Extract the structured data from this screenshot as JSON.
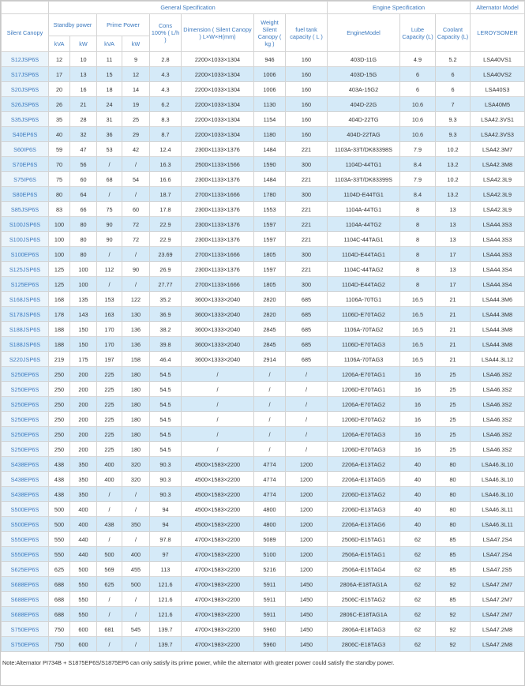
{
  "header": {
    "general": "General Specification",
    "engine": "Engine Specification",
    "alternator": "Alternator Model",
    "silent_canopy": "Silent Canopy",
    "standby": "Standby power",
    "prime": "Prime Power",
    "cons": "Cons 100% ( L/h )",
    "dimension": "Dimension ( Silent Canopy ) L×W×H(mm)",
    "weight": "Weight Silent Canopy ( kg )",
    "fuel": "fuel tank capacity ( L )",
    "engine_model": "EngineModel",
    "lube": "Lube Capacity (L)",
    "coolant": "Coolant Capacity (L)",
    "brand": "LEROYSOMER",
    "kva": "kVA",
    "kw": "kW"
  },
  "rows": [
    [
      "S12JSP6S",
      12,
      10,
      11,
      9,
      2.8,
      "2200×1033×1304",
      946,
      160,
      "403D-11G",
      4.9,
      5.2,
      "LSA40VS1"
    ],
    [
      "S17JSP6S",
      17,
      13,
      15,
      12,
      4.3,
      "2200×1033×1304",
      1006,
      160,
      "403D-15G",
      6,
      6,
      "LSA40VS2"
    ],
    [
      "S20JSP6S",
      20,
      16,
      18,
      14,
      4.3,
      "2200×1033×1304",
      1006,
      160,
      "403A-15G2",
      6,
      6,
      "LSA40S3"
    ],
    [
      "S26JSP6S",
      26,
      21,
      24,
      19,
      6.2,
      "2200×1033×1304",
      1130,
      160,
      "404D-22G",
      10.6,
      7,
      "LSA40M5"
    ],
    [
      "S35JSP6S",
      35,
      28,
      31,
      25,
      8.3,
      "2200×1033×1304",
      1154,
      160,
      "404D-22TG",
      10.6,
      9.3,
      "LSA42.3VS1"
    ],
    [
      "S40EP6S",
      40,
      32,
      36,
      29,
      8.7,
      "2200×1033×1304",
      1180,
      160,
      "404D-22TAG",
      10.6,
      9.3,
      "LSA42.3VS3"
    ],
    [
      "S60IP6S",
      59,
      47,
      53,
      42,
      12.4,
      "2300×1133×1376",
      1484,
      221,
      "1103A-33T/DK83398S",
      7.9,
      10.2,
      "LSA42.3M7"
    ],
    [
      "S70EP6S",
      70,
      56,
      "/",
      "/",
      16.3,
      "2500×1133×1566",
      1590,
      300,
      "1104D-44TG1",
      8.4,
      13.2,
      "LSA42.3M8"
    ],
    [
      "S75IP6S",
      75,
      60,
      68,
      54,
      16.6,
      "2300×1133×1376",
      1484,
      221,
      "1103A-33T/DK83399S",
      7.9,
      10.2,
      "LSA42.3L9"
    ],
    [
      "S80EP6S",
      80,
      64,
      "/",
      "/",
      18.7,
      "2700×1133×1666",
      1780,
      300,
      "1104D-E44TG1",
      8.4,
      13.2,
      "LSA42.3L9"
    ],
    [
      "S85JSP6S",
      83,
      66,
      75,
      60,
      17.8,
      "2300×1133×1376",
      1553,
      221,
      "1104A-44TG1",
      8,
      13,
      "LSA42.3L9"
    ],
    [
      "S100JSP6S",
      100,
      80,
      90,
      72,
      22.9,
      "2300×1133×1376",
      1597,
      221,
      "1104A-44TG2",
      8,
      13,
      "LSA44.3S3"
    ],
    [
      "S100JSP6S",
      100,
      80,
      90,
      72,
      22.9,
      "2300×1133×1376",
      1597,
      221,
      "1104C-44TAG1",
      8,
      13,
      "LSA44.3S3"
    ],
    [
      "S100EP6S",
      100,
      80,
      "/",
      "/",
      23.69,
      "2700×1133×1666",
      1805,
      300,
      "1104D-E44TAG1",
      8,
      17,
      "LSA44.3S3"
    ],
    [
      "S125JSP6S",
      125,
      100,
      112,
      90,
      26.9,
      "2300×1133×1376",
      1597,
      221,
      "1104C-44TAG2",
      8,
      13,
      "LSA44.3S4"
    ],
    [
      "S125EP6S",
      125,
      100,
      "/",
      "/",
      27.77,
      "2700×1133×1666",
      1805,
      300,
      "1104D-E44TAG2",
      8,
      17,
      "LSA44.3S4"
    ],
    [
      "S168JSP6S",
      168,
      135,
      153,
      122,
      35.2,
      "3600×1333×2040",
      2820,
      685,
      "1106A-70TG1",
      16.5,
      21,
      "LSA44.3M6"
    ],
    [
      "S178JSP6S",
      178,
      143,
      163,
      130,
      36.9,
      "3600×1333×2040",
      2820,
      685,
      "1106D-E70TAG2",
      16.5,
      21,
      "LSA44.3M8"
    ],
    [
      "S188JSP6S",
      188,
      150,
      170,
      136,
      38.2,
      "3600×1333×2040",
      2845,
      685,
      "1106A-70TAG2",
      16.5,
      21,
      "LSA44.3M8"
    ],
    [
      "S188JSP6S",
      188,
      150,
      170,
      136,
      39.8,
      "3600×1333×2040",
      2845,
      685,
      "1106D-E70TAG3",
      16.5,
      21,
      "LSA44.3M8"
    ],
    [
      "S220JSP6S",
      219,
      175,
      197,
      158,
      46.4,
      "3600×1333×2040",
      2914,
      685,
      "1106A-70TAG3",
      16.5,
      21,
      "LSA44.3L12"
    ],
    [
      "S250EP6S",
      250,
      200,
      225,
      180,
      54.5,
      "/",
      "/",
      "/",
      "1206A-E70TAG1",
      16,
      25,
      "LSA46.3S2"
    ],
    [
      "S250EP6S",
      250,
      200,
      225,
      180,
      54.5,
      "/",
      "/",
      "/",
      "1206D-E70TAG1",
      16,
      25,
      "LSA46.3S2"
    ],
    [
      "S250EP6S",
      250,
      200,
      225,
      180,
      54.5,
      "/",
      "/",
      "/",
      "1206A-E70TAG2",
      16,
      25,
      "LSA46.3S2"
    ],
    [
      "S250EP6S",
      250,
      200,
      225,
      180,
      54.5,
      "/",
      "/",
      "/",
      "1206D-E70TAG2",
      16,
      25,
      "LSA46.3S2"
    ],
    [
      "S250EP6S",
      250,
      200,
      225,
      180,
      54.5,
      "/",
      "/",
      "/",
      "1206A-E70TAG3",
      16,
      25,
      "LSA46.3S2"
    ],
    [
      "S250EP6S",
      250,
      200,
      225,
      180,
      54.5,
      "/",
      "/",
      "/",
      "1206D-E70TAG3",
      16,
      25,
      "LSA46.3S2"
    ],
    [
      "S438EP6S",
      438,
      350,
      400,
      320,
      90.3,
      "4500×1583×2200",
      4774,
      1200,
      "2206A-E13TAG2",
      40,
      80,
      "LSA46.3L10"
    ],
    [
      "S438EP6S",
      438,
      350,
      400,
      320,
      90.3,
      "4500×1583×2200",
      4774,
      1200,
      "2206A-E13TAG5",
      40,
      80,
      "LSA46.3L10"
    ],
    [
      "S438EP6S",
      438,
      350,
      "/",
      "/",
      90.3,
      "4500×1583×2200",
      4774,
      1200,
      "2206D-E13TAG2",
      40,
      80,
      "LSA46.3L10"
    ],
    [
      "S500EP6S",
      500,
      400,
      "/",
      "/",
      94,
      "4500×1583×2200",
      4800,
      1200,
      "2206D-E13TAG3",
      40,
      80,
      "LSA46.3L11"
    ],
    [
      "S500EP6S",
      500,
      400,
      438,
      350,
      94,
      "4500×1583×2200",
      4800,
      1200,
      "2206A-E13TAG6",
      40,
      80,
      "LSA46.3L11"
    ],
    [
      "S550EP6S",
      550,
      440,
      "/",
      "/",
      97.8,
      "4700×1583×2200",
      5089,
      1200,
      "2506D-E15TAG1",
      62,
      85,
      "LSA47.2S4"
    ],
    [
      "S550EP6S",
      550,
      440,
      500,
      400,
      97,
      "4700×1583×2200",
      5100,
      1200,
      "2506A-E15TAG1",
      62,
      85,
      "LSA47.2S4"
    ],
    [
      "S625EP6S",
      625,
      500,
      569,
      455,
      113,
      "4700×1583×2200",
      5216,
      1200,
      "2506A-E15TAG4",
      62,
      85,
      "LSA47.2S5"
    ],
    [
      "S688EP6S",
      688,
      550,
      625,
      500,
      121.6,
      "4700×1983×2200",
      5911,
      1450,
      "2806A-E18TAG1A",
      62,
      92,
      "LSA47.2M7"
    ],
    [
      "S688EP6S",
      688,
      550,
      "/",
      "/",
      121.6,
      "4700×1983×2200",
      5911,
      1450,
      "2506C-E15TAG2",
      62,
      85,
      "LSA47.2M7"
    ],
    [
      "S688EP6S",
      688,
      550,
      "/",
      "/",
      121.6,
      "4700×1983×2200",
      5911,
      1450,
      "2806C-E18TAG1A",
      62,
      92,
      "LSA47.2M7"
    ],
    [
      "S750EP6S",
      750,
      600,
      681,
      545,
      139.7,
      "4700×1983×2200",
      5960,
      1450,
      "2806A-E18TAG3",
      62,
      92,
      "LSA47.2M8"
    ],
    [
      "S750EP6S",
      750,
      600,
      "/",
      "/",
      139.7,
      "4700×1983×2200",
      5960,
      1450,
      "2806C-E18TAG3",
      62,
      92,
      "LSA47.2M8"
    ]
  ],
  "note": "Note:Alternator PI734B + S1875EP6S/S1875EP6 can only satisfy its prime power, while the alternator with greater power could satisfy the standby power."
}
